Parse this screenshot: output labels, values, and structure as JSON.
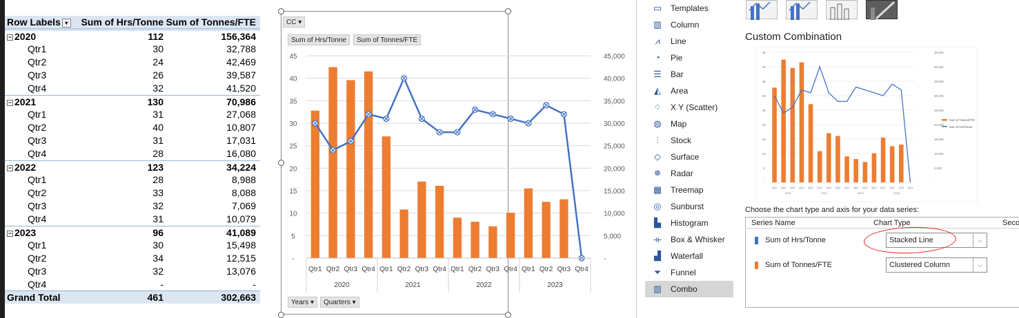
{
  "pivot": {
    "headers": {
      "row_labels": "Row Labels",
      "col1": "Sum of Hrs/Tonne",
      "col2": "Sum of Tonnes/FTE"
    },
    "collapse_glyph": "⊟",
    "filter_glyph": "▾",
    "rows": [
      {
        "kind": "year",
        "label": "2020",
        "hrs": "112",
        "tonnes": "156,364"
      },
      {
        "kind": "q",
        "label": "Qtr1",
        "hrs": "30",
        "tonnes": "32,788"
      },
      {
        "kind": "q",
        "label": "Qtr2",
        "hrs": "24",
        "tonnes": "42,469"
      },
      {
        "kind": "q",
        "label": "Qtr3",
        "hrs": "26",
        "tonnes": "39,587"
      },
      {
        "kind": "q",
        "label": "Qtr4",
        "hrs": "32",
        "tonnes": "41,520"
      },
      {
        "kind": "year",
        "label": "2021",
        "hrs": "130",
        "tonnes": "70,986"
      },
      {
        "kind": "q",
        "label": "Qtr1",
        "hrs": "31",
        "tonnes": "27,068"
      },
      {
        "kind": "q",
        "label": "Qtr2",
        "hrs": "40",
        "tonnes": "10,807"
      },
      {
        "kind": "q",
        "label": "Qtr3",
        "hrs": "31",
        "tonnes": "17,031"
      },
      {
        "kind": "q",
        "label": "Qtr4",
        "hrs": "28",
        "tonnes": "16,080"
      },
      {
        "kind": "year",
        "label": "2022",
        "hrs": "123",
        "tonnes": "34,224"
      },
      {
        "kind": "q",
        "label": "Qtr1",
        "hrs": "28",
        "tonnes": "8,988"
      },
      {
        "kind": "q",
        "label": "Qtr2",
        "hrs": "33",
        "tonnes": "8,088"
      },
      {
        "kind": "q",
        "label": "Qtr3",
        "hrs": "32",
        "tonnes": "7,069"
      },
      {
        "kind": "q",
        "label": "Qtr4",
        "hrs": "31",
        "tonnes": "10,079"
      },
      {
        "kind": "year",
        "label": "2023",
        "hrs": "96",
        "tonnes": "41,089"
      },
      {
        "kind": "q",
        "label": "Qtr1",
        "hrs": "30",
        "tonnes": "15,498"
      },
      {
        "kind": "q",
        "label": "Qtr2",
        "hrs": "34",
        "tonnes": "12,515"
      },
      {
        "kind": "q",
        "label": "Qtr3",
        "hrs": "32",
        "tonnes": "13,076"
      },
      {
        "kind": "q",
        "label": "Qtr4",
        "hrs": "-",
        "tonnes": "-"
      }
    ],
    "grand_total": {
      "label": "Grand Total",
      "hrs": "461",
      "tonnes": "302,663"
    }
  },
  "chart_buttons": {
    "cc": "CC ▾",
    "sum_hrs": "Sum of Hrs/Tonne",
    "sum_tonnes": "Sum of Tonnes/FTE",
    "years": "Years ▾",
    "quarters": "Quarters ▾"
  },
  "chart_data": {
    "type": "bar",
    "categories": [
      "Qtr1",
      "Qtr2",
      "Qtr3",
      "Qtr4",
      "Qtr1",
      "Qtr2",
      "Qtr3",
      "Qtr4",
      "Qtr1",
      "Qtr2",
      "Qtr3",
      "Qtr4",
      "Qtr1",
      "Qtr2",
      "Qtr3",
      "Qtr4"
    ],
    "groups": [
      "2020",
      "2021",
      "2022",
      "2023"
    ],
    "series": [
      {
        "type": "bar",
        "axis": "left",
        "color": "#ed7d31",
        "values": [
          32788,
          42469,
          39587,
          41520,
          27068,
          10807,
          17031,
          16080,
          8988,
          8088,
          7069,
          10079,
          15498,
          12515,
          13076,
          0
        ]
      },
      {
        "type": "line",
        "axis": "right",
        "color": "#4472c4",
        "values": [
          30,
          24,
          26,
          32,
          31,
          40,
          31,
          28,
          28,
          33,
          32,
          31,
          30,
          34,
          32,
          0
        ]
      }
    ],
    "left_ticks": [
      "-",
      "5",
      "10",
      "15",
      "20",
      "25",
      "30",
      "35",
      "40",
      "45"
    ],
    "right_ticks": [
      "-",
      "5,000",
      "10,000",
      "15,000",
      "20,000",
      "25,000",
      "30,000",
      "35,000",
      "40,000",
      "45,000"
    ],
    "left_max": 45,
    "right_max": 45000,
    "grid": true
  },
  "dialog": {
    "chart_types": [
      {
        "label": "Templates",
        "icon": "folder-icon",
        "glyph": "▭"
      },
      {
        "label": "Column",
        "icon": "column-chart-icon",
        "glyph": "▥"
      },
      {
        "label": "Line",
        "icon": "line-chart-icon",
        "glyph": "⩘"
      },
      {
        "label": "Pie",
        "icon": "pie-chart-icon",
        "glyph": "◔"
      },
      {
        "label": "Bar",
        "icon": "bar-chart-icon",
        "glyph": "☰"
      },
      {
        "label": "Area",
        "icon": "area-chart-icon",
        "glyph": "◭"
      },
      {
        "label": "X Y (Scatter)",
        "icon": "scatter-chart-icon",
        "glyph": "⁘"
      },
      {
        "label": "Map",
        "icon": "map-chart-icon",
        "glyph": "◍"
      },
      {
        "label": "Stock",
        "icon": "stock-chart-icon",
        "glyph": "⫶"
      },
      {
        "label": "Surface",
        "icon": "surface-chart-icon",
        "glyph": "◇"
      },
      {
        "label": "Radar",
        "icon": "radar-chart-icon",
        "glyph": "✵"
      },
      {
        "label": "Treemap",
        "icon": "treemap-chart-icon",
        "glyph": "▦"
      },
      {
        "label": "Sunburst",
        "icon": "sunburst-chart-icon",
        "glyph": "◎"
      },
      {
        "label": "Histogram",
        "icon": "histogram-chart-icon",
        "glyph": "▙"
      },
      {
        "label": "Box & Whisker",
        "icon": "box-whisker-chart-icon",
        "glyph": "⟛"
      },
      {
        "label": "Waterfall",
        "icon": "waterfall-chart-icon",
        "glyph": "▟"
      },
      {
        "label": "Funnel",
        "icon": "funnel-chart-icon",
        "glyph": "⏷"
      },
      {
        "label": "Combo",
        "icon": "combo-chart-icon",
        "glyph": "▥",
        "selected": true
      }
    ],
    "combo_title": "Custom Combination",
    "choose_label": "Choose the chart type and axis for your data series:",
    "table_headers": {
      "series_name": "Series Name",
      "chart_type": "Chart Type",
      "secondary": "Seco"
    },
    "series_rows": [
      {
        "name": "Sum of Hrs/Tonne",
        "color": "#4472c4",
        "chart_type": "Stacked Line"
      },
      {
        "name": "Sum of Tonnes/FTE",
        "color": "#ed7d31",
        "chart_type": "Clustered Column"
      }
    ],
    "dropdown_arrow": "⌵",
    "preview": {
      "left_ticks": [
        "-",
        "5",
        "10",
        "15",
        "20",
        "25",
        "30",
        "35",
        "40",
        "45"
      ],
      "right_ticks": [
        "-",
        "5,000",
        "10,000",
        "15,000",
        "20,000",
        "25,000",
        "30,000",
        "35,000",
        "40,000",
        "45,000"
      ],
      "legend": [
        "Sum of Tonnes/FTE",
        "Sum of Hrs/Tonne"
      ],
      "categories": [
        "Qtr1",
        "Qtr2",
        "Qtr3",
        "Qtr4",
        "Qtr1",
        "Qtr2",
        "Qtr3",
        "Qtr4",
        "Qtr1",
        "Qtr2",
        "Qtr3",
        "Qtr4",
        "Qtr1",
        "Qtr2",
        "Qtr3",
        "Qtr4"
      ],
      "groups": [
        "2020",
        "2021",
        "2022",
        "2023"
      ]
    }
  }
}
